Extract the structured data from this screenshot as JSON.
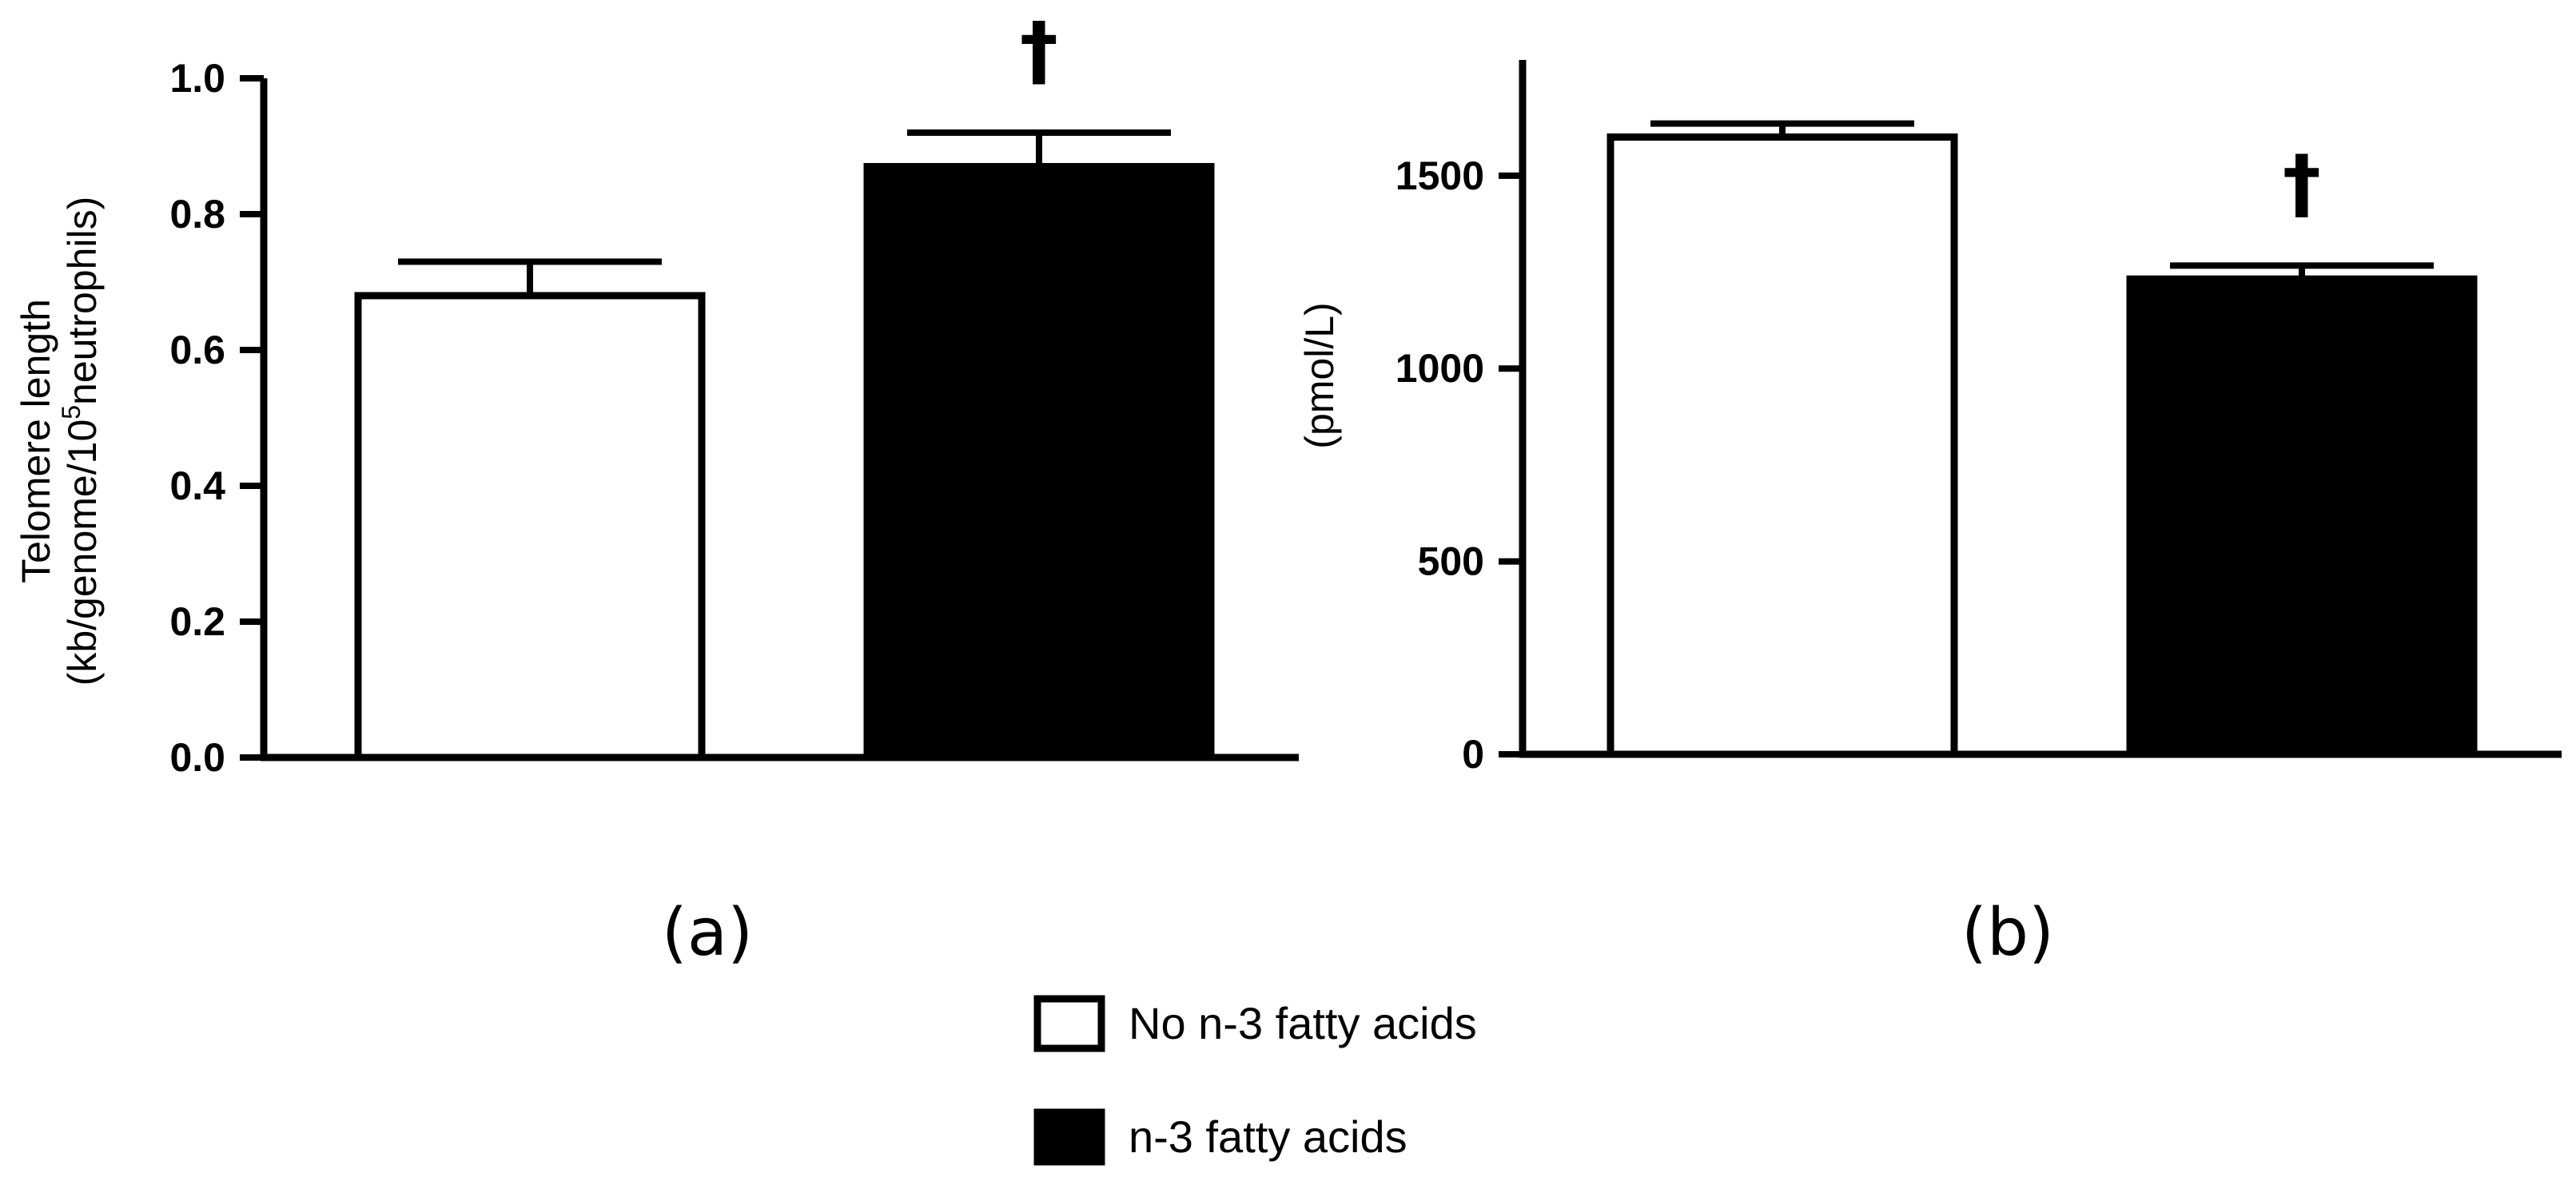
{
  "chart_data": [
    {
      "type": "bar",
      "panel_label": "(a)",
      "ylabel_line1": "Telomere length",
      "ylabel_line2_prefix": "(kb/genome/10",
      "ylabel_line2_sup": "5",
      "ylabel_line2_suffix": "neutrophils)",
      "ylim": [
        0,
        1.0
      ],
      "yticks": [
        "0.0",
        "0.2",
        "0.4",
        "0.6",
        "0.8",
        "1.0"
      ],
      "series": [
        {
          "name": "No n-3 fatty acids",
          "value": 0.68,
          "error": 0.05,
          "color": "#ffffff",
          "significance": ""
        },
        {
          "name": "n-3 fatty acids",
          "value": 0.87,
          "error": 0.05,
          "color": "#000000",
          "significance": "†"
        }
      ]
    },
    {
      "type": "bar",
      "panel_label": "(b)",
      "ylabel_line1": "(pmol/L)",
      "ylim": [
        0,
        1800
      ],
      "yticks": [
        "0",
        "500",
        "1000",
        "1500"
      ],
      "series": [
        {
          "name": "No n-3 fatty acids",
          "value": 1600,
          "error": 35,
          "color": "#ffffff",
          "significance": ""
        },
        {
          "name": "n-3 fatty acids",
          "value": 1232,
          "error": 35,
          "color": "#000000",
          "significance": "†"
        }
      ]
    }
  ],
  "legend": {
    "items": [
      {
        "label": "No n-3 fatty acids",
        "color": "#ffffff"
      },
      {
        "label": "n-3 fatty acids",
        "color": "#000000"
      }
    ]
  }
}
